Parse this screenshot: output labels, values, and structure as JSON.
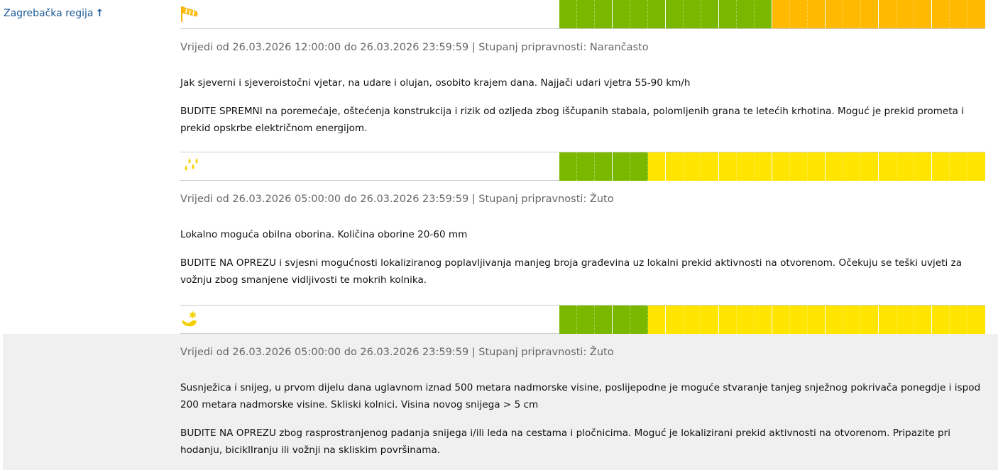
{
  "region": {
    "name": "Zagrebačka regija",
    "arrow": "↑"
  },
  "colors": {
    "green": "#7ab800",
    "orange": "#ffb900",
    "yellow": "#ffe500",
    "link": "#1a5a96"
  },
  "warnings": [
    {
      "icon": "wind-icon",
      "levels": [
        "green",
        "green",
        "green",
        "green",
        "green",
        "green",
        "green",
        "green",
        "green",
        "green",
        "green",
        "green",
        "orange",
        "orange",
        "orange",
        "orange",
        "orange",
        "orange",
        "orange",
        "orange",
        "orange",
        "orange",
        "orange",
        "orange"
      ],
      "validity": "Vrijedi od 26.03.2026 12:00:00 do 26.03.2026 23:59:59 | Stupanj pripravnosti: Narančasto",
      "description": "Jak sjeverni i sjeveroistočni vjetar, na udare i olujan, osobito krajem dana. Najjači udari vjetra 55-90 km/h",
      "advice": "BUDITE SPREMNI na poremećaje, oštećenja konstrukcija i rizik od ozljeda zbog iščupanih stabala, polomljenih grana te letećih krhotina. Moguć je prekid prometa i prekid opskrbe električnom energijom."
    },
    {
      "icon": "rain-icon",
      "levels": [
        "green",
        "green",
        "green",
        "green",
        "green",
        "yellow",
        "yellow",
        "yellow",
        "yellow",
        "yellow",
        "yellow",
        "yellow",
        "yellow",
        "yellow",
        "yellow",
        "yellow",
        "yellow",
        "yellow",
        "yellow",
        "yellow",
        "yellow",
        "yellow",
        "yellow",
        "yellow"
      ],
      "validity": "Vrijedi od 26.03.2026 05:00:00 do 26.03.2026 23:59:59 | Stupanj pripravnosti: Žuto",
      "description": "Lokalno moguća obilna oborina. Količina oborine 20-60 mm",
      "advice": "BUDITE NA OPREZU i svjesni mogućnosti lokaliziranog poplavljivanja manjeg broja građevina uz lokalni prekid aktivnosti na otvorenom. Očekuju se teški uvjeti za vožnju zbog smanjene vidljivosti te mokrih kolnika."
    },
    {
      "icon": "snow-ice-icon",
      "levels": [
        "green",
        "green",
        "green",
        "green",
        "green",
        "yellow",
        "yellow",
        "yellow",
        "yellow",
        "yellow",
        "yellow",
        "yellow",
        "yellow",
        "yellow",
        "yellow",
        "yellow",
        "yellow",
        "yellow",
        "yellow",
        "yellow",
        "yellow",
        "yellow",
        "yellow",
        "yellow"
      ],
      "validity": "Vrijedi od 26.03.2026 05:00:00 do 26.03.2026 23:59:59 | Stupanj pripravnosti: Žuto",
      "description": "Susnježica i snijeg, u prvom dijelu dana uglavnom iznad 500 metara nadmorske visine, poslijepodne je moguće stvaranje tanjeg snježnog pokrivača ponegdje i ispod 200 metara nadmorske visine. Skliski kolnici. Visina novog snijega > 5 cm",
      "advice": "BUDITE NA OPREZU zbog rasprostranjenog padanja snijega i/ili leda na cestama i pločnicima. Moguć je lokalizirani prekid aktivnosti na otvorenom. Pripazite pri hodanju, biciklIranju ili vožnji na skliskim površinama."
    }
  ]
}
